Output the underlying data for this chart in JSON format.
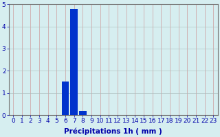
{
  "categories": [
    0,
    1,
    2,
    3,
    4,
    5,
    6,
    7,
    8,
    9,
    10,
    11,
    12,
    13,
    14,
    15,
    16,
    17,
    18,
    19,
    20,
    21,
    22,
    23
  ],
  "values": [
    0,
    0,
    0,
    0,
    0,
    0,
    1.5,
    4.8,
    0.2,
    0,
    0,
    0,
    0,
    0,
    0,
    0,
    0,
    0,
    0,
    0,
    0,
    0,
    0,
    0
  ],
  "bar_color": "#0033cc",
  "background_color": "#d6eef0",
  "grid_color_major": "#c0c0c0",
  "grid_color_minor": "#e0b0b0",
  "title": "",
  "xlabel": "Précipitations 1h ( mm )",
  "ylabel": "",
  "ylim": [
    0,
    5
  ],
  "xlim": [
    -0.5,
    23.5
  ],
  "yticks": [
    0,
    1,
    2,
    3,
    4,
    5
  ],
  "xticks": [
    0,
    1,
    2,
    3,
    4,
    5,
    6,
    7,
    8,
    9,
    10,
    11,
    12,
    13,
    14,
    15,
    16,
    17,
    18,
    19,
    20,
    21,
    22,
    23
  ],
  "xlabel_fontsize": 7.5,
  "tick_fontsize": 6.5,
  "bar_width": 0.85
}
